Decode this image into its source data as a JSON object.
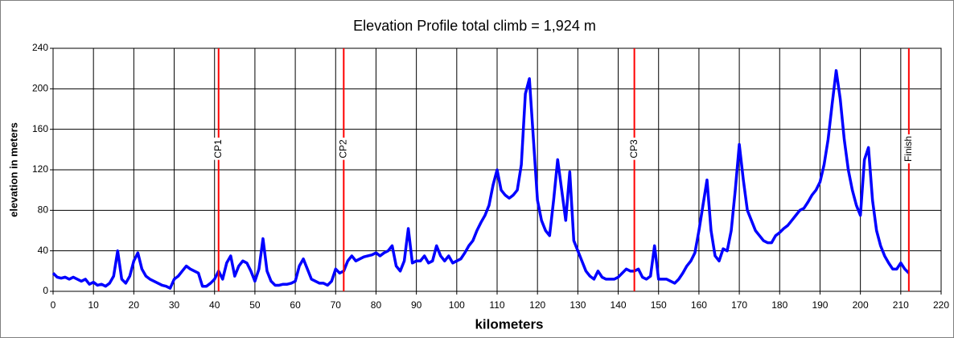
{
  "chart_data": {
    "type": "line",
    "title": "Elevation Profile  total climb = 1,924 m",
    "xlabel": "kilometers",
    "ylabel": "elevation in meters",
    "color": "#0000ff",
    "x": [
      0,
      1,
      2,
      3,
      4,
      5,
      6,
      7,
      8,
      9,
      10,
      11,
      12,
      13,
      14,
      15,
      16,
      17,
      18,
      19,
      20,
      21,
      22,
      23,
      24,
      25,
      26,
      27,
      28,
      29,
      30,
      31,
      32,
      33,
      34,
      35,
      36,
      37,
      38,
      39,
      40,
      41,
      42,
      43,
      44,
      45,
      46,
      47,
      48,
      49,
      50,
      51,
      52,
      53,
      54,
      55,
      56,
      57,
      58,
      59,
      60,
      61,
      62,
      63,
      64,
      65,
      66,
      67,
      68,
      69,
      70,
      71,
      72,
      73,
      74,
      75,
      76,
      77,
      78,
      79,
      80,
      81,
      82,
      83,
      84,
      85,
      86,
      87,
      88,
      89,
      90,
      91,
      92,
      93,
      94,
      95,
      96,
      97,
      98,
      99,
      100,
      101,
      102,
      103,
      104,
      105,
      106,
      107,
      108,
      109,
      110,
      111,
      112,
      113,
      114,
      115,
      116,
      117,
      118,
      119,
      120,
      121,
      122,
      123,
      124,
      125,
      126,
      127,
      128,
      129,
      130,
      131,
      132,
      133,
      134,
      135,
      136,
      137,
      138,
      139,
      140,
      141,
      142,
      143,
      144,
      145,
      146,
      147,
      148,
      149,
      150,
      151,
      152,
      153,
      154,
      155,
      156,
      157,
      158,
      159,
      160,
      161,
      162,
      163,
      164,
      165,
      166,
      167,
      168,
      169,
      170,
      171,
      172,
      173,
      174,
      175,
      176,
      177,
      178,
      179,
      180,
      181,
      182,
      183,
      184,
      185,
      186,
      187,
      188,
      189,
      190,
      191,
      192,
      193,
      194,
      195,
      196,
      197,
      198,
      199,
      200,
      201,
      202,
      203,
      204,
      205,
      206,
      207,
      208,
      209,
      210,
      211,
      212
    ],
    "values": [
      18,
      14,
      13,
      14,
      12,
      14,
      12,
      10,
      12,
      7,
      9,
      6,
      7,
      5,
      8,
      15,
      40,
      12,
      8,
      15,
      30,
      38,
      22,
      15,
      12,
      10,
      8,
      6,
      5,
      3,
      12,
      15,
      20,
      25,
      22,
      20,
      18,
      5,
      5,
      8,
      12,
      20,
      12,
      28,
      35,
      15,
      25,
      30,
      28,
      20,
      10,
      22,
      52,
      20,
      10,
      6,
      6,
      7,
      7,
      8,
      10,
      25,
      32,
      22,
      12,
      10,
      8,
      8,
      6,
      10,
      22,
      18,
      20,
      30,
      35,
      30,
      32,
      34,
      35,
      36,
      38,
      35,
      38,
      40,
      45,
      25,
      20,
      30,
      62,
      28,
      30,
      30,
      35,
      28,
      30,
      45,
      35,
      30,
      35,
      28,
      30,
      32,
      38,
      45,
      50,
      60,
      68,
      75,
      85,
      105,
      120,
      100,
      95,
      92,
      95,
      100,
      125,
      195,
      210,
      150,
      90,
      70,
      60,
      55,
      90,
      130,
      100,
      70,
      118,
      50,
      40,
      30,
      20,
      15,
      12,
      20,
      14,
      12,
      12,
      12,
      14,
      18,
      22,
      20,
      20,
      22,
      14,
      12,
      15,
      45,
      12,
      12,
      12,
      10,
      8,
      12,
      18,
      25,
      30,
      38,
      60,
      85,
      110,
      60,
      35,
      30,
      42,
      40,
      60,
      100,
      145,
      110,
      80,
      70,
      60,
      55,
      50,
      48,
      48,
      55,
      58,
      62,
      65,
      70,
      75,
      80,
      82,
      88,
      95,
      100,
      108,
      125,
      150,
      185,
      218,
      190,
      150,
      120,
      100,
      85,
      75,
      130,
      142,
      90,
      60,
      45,
      35,
      28,
      22,
      22,
      28,
      22,
      18
    ],
    "xlim": [
      0,
      220
    ],
    "ylim": [
      0,
      240
    ],
    "xticks": [
      0,
      10,
      20,
      30,
      40,
      50,
      60,
      70,
      80,
      90,
      100,
      110,
      120,
      130,
      140,
      150,
      160,
      170,
      180,
      190,
      200,
      210,
      220
    ],
    "yticks": [
      0,
      40,
      80,
      120,
      160,
      200,
      240
    ],
    "grid": true,
    "markers": [
      {
        "label": "CP1",
        "x": 41
      },
      {
        "label": "CP2",
        "x": 72
      },
      {
        "label": "CP3",
        "x": 144
      },
      {
        "label": "Finish",
        "x": 212
      }
    ],
    "marker_color": "#ff0000"
  }
}
